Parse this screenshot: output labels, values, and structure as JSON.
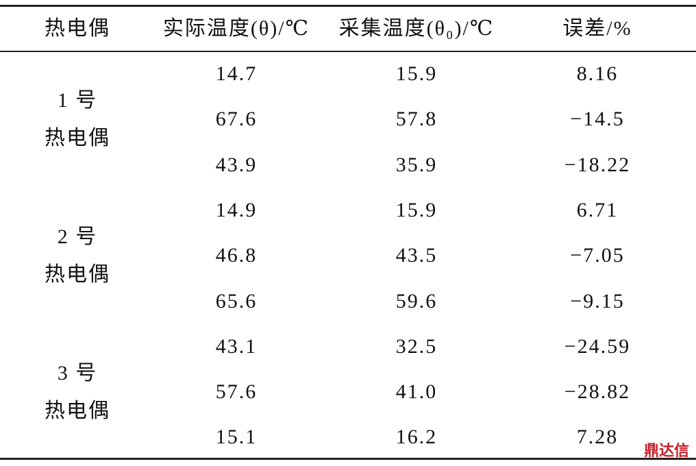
{
  "table": {
    "header": [
      "热电偶",
      "实际温度(θ)/℃",
      "采集温度(θ₀)/℃",
      "误差/%"
    ],
    "groups": [
      {
        "label": [
          "1 号",
          "热电偶"
        ],
        "rows": [
          [
            "14.7",
            "15.9",
            "8.16"
          ],
          [
            "67.6",
            "57.8",
            "−14.5"
          ],
          [
            "43.9",
            "35.9",
            "−18.22"
          ]
        ]
      },
      {
        "label": [
          "2 号",
          "热电偶"
        ],
        "rows": [
          [
            "14.9",
            "15.9",
            "6.71"
          ],
          [
            "46.8",
            "43.5",
            "−7.05"
          ],
          [
            "65.6",
            "59.6",
            "−9.15"
          ]
        ]
      },
      {
        "label": [
          "3 号",
          "热电偶"
        ],
        "rows": [
          [
            "43.1",
            "32.5",
            "−24.59"
          ],
          [
            "57.6",
            "41.0",
            "−28.82"
          ],
          [
            "15.1",
            "16.2",
            "7.28"
          ]
        ]
      }
    ]
  },
  "watermark": "鼎达信"
}
